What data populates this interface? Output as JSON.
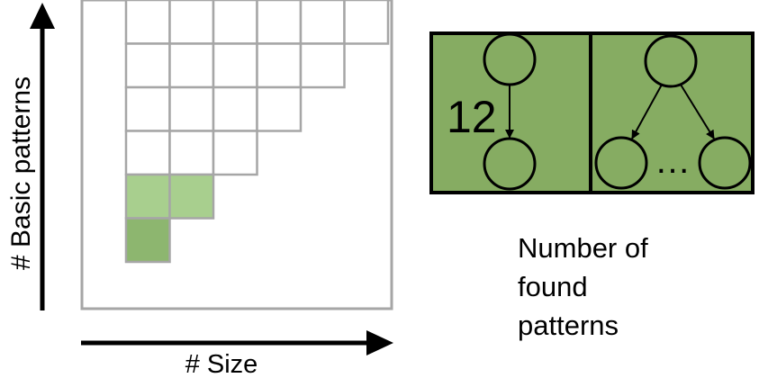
{
  "axes": {
    "y_label": "# Basic patterns",
    "x_label": "# Size"
  },
  "grid": {
    "rows": [
      {
        "filled_cols": [
          0,
          1,
          2,
          3,
          4,
          5
        ],
        "highlighted_cols": []
      },
      {
        "filled_cols": [
          0,
          1,
          2,
          3,
          4
        ],
        "highlighted_cols": []
      },
      {
        "filled_cols": [
          0,
          1,
          2,
          3
        ],
        "highlighted_cols": []
      },
      {
        "filled_cols": [
          0,
          1,
          2
        ],
        "highlighted_cols": []
      },
      {
        "filled_cols": [
          0,
          1
        ],
        "highlighted_cols": [
          0,
          1
        ]
      },
      {
        "filled_cols": [
          0
        ],
        "highlighted_cols": [
          0
        ]
      }
    ]
  },
  "patterns_panel": {
    "count_value": "12",
    "ellipsis": "…"
  },
  "caption": {
    "lines": [
      "Number of",
      "found",
      "patterns"
    ]
  },
  "colors": {
    "grid_line": "#a6a6a6",
    "highlight_light": "#a8cf8e",
    "highlight_dark": "#8db66f",
    "panel_fill": "#86ac62",
    "panel_border": "#000000",
    "arrow": "#000000"
  }
}
